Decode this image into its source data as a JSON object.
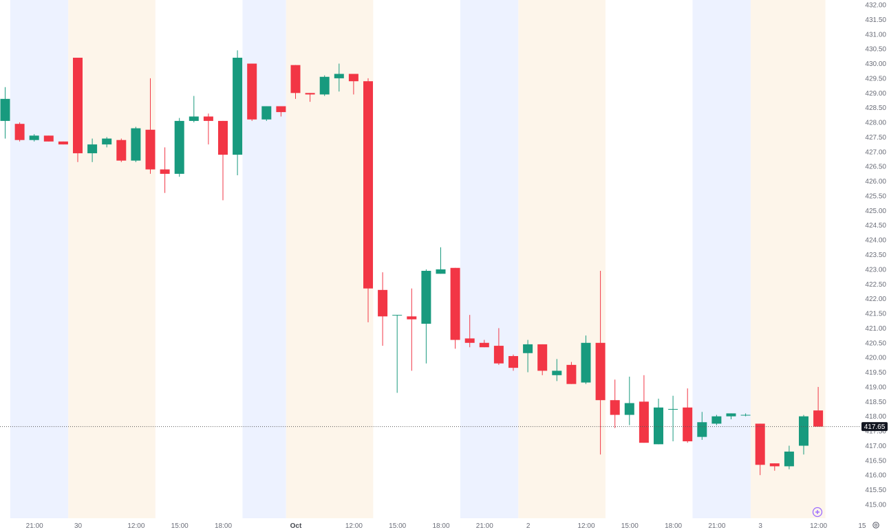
{
  "colors": {
    "up": "#189a7e",
    "down": "#f23645",
    "session_asia": "#edf2ff",
    "session_europe": "#fdf5ea",
    "axis_text": "#6a6d78",
    "price_line": "#555555",
    "price_tag_bg": "#131722",
    "accent": "#9c6cff"
  },
  "chart_data": {
    "type": "candlestick",
    "ylim": [
      414.8,
      432.0
    ],
    "y_ticks": [
      415.0,
      415.5,
      416.0,
      416.5,
      417.0,
      417.5,
      418.0,
      418.5,
      419.0,
      419.5,
      420.0,
      420.5,
      421.0,
      421.5,
      422.0,
      422.5,
      423.0,
      423.5,
      424.0,
      424.5,
      425.0,
      425.5,
      426.0,
      426.5,
      427.0,
      427.5,
      428.0,
      428.5,
      429.0,
      429.5,
      430.0,
      430.5,
      431.0,
      431.5,
      432.0
    ],
    "x_labels": [
      {
        "label": "21:00",
        "bar": 2
      },
      {
        "label": "30",
        "bar": 5
      },
      {
        "label": "12:00",
        "bar": 9
      },
      {
        "label": "15:00",
        "bar": 12
      },
      {
        "label": "18:00",
        "bar": 15
      },
      {
        "label": "Oct",
        "bar": 20,
        "bold": true
      },
      {
        "label": "12:00",
        "bar": 24
      },
      {
        "label": "15:00",
        "bar": 27
      },
      {
        "label": "18:00",
        "bar": 30
      },
      {
        "label": "21:00",
        "bar": 33
      },
      {
        "label": "2",
        "bar": 36
      },
      {
        "label": "12:00",
        "bar": 40
      },
      {
        "label": "15:00",
        "bar": 43
      },
      {
        "label": "18:00",
        "bar": 46
      },
      {
        "label": "21:00",
        "bar": 49
      },
      {
        "label": "3",
        "bar": 52
      },
      {
        "label": "12:00",
        "bar": 56
      },
      {
        "label": "15",
        "bar": 59
      }
    ],
    "sessions": [
      {
        "kind": "asia",
        "from": 0.35,
        "to": 4.35
      },
      {
        "kind": "europe",
        "from": 4.35,
        "to": 10.35
      },
      {
        "kind": "asia",
        "from": 16.35,
        "to": 19.35
      },
      {
        "kind": "europe",
        "from": 19.35,
        "to": 25.35
      },
      {
        "kind": "asia",
        "from": 31.35,
        "to": 35.35
      },
      {
        "kind": "europe",
        "from": 35.35,
        "to": 41.35
      },
      {
        "kind": "asia",
        "from": 47.35,
        "to": 51.35
      },
      {
        "kind": "europe",
        "from": 51.35,
        "to": 56.5
      }
    ],
    "last_price": 417.65,
    "last_price_label": "417.65",
    "candles": [
      {
        "o": 428.05,
        "h": 429.2,
        "l": 427.45,
        "c": 428.8
      },
      {
        "o": 427.95,
        "h": 428.0,
        "l": 427.35,
        "c": 427.4
      },
      {
        "o": 427.4,
        "h": 427.6,
        "l": 427.35,
        "c": 427.55
      },
      {
        "o": 427.55,
        "h": 427.55,
        "l": 427.35,
        "c": 427.35
      },
      {
        "o": 427.35,
        "h": 427.35,
        "l": 427.25,
        "c": 427.25
      },
      {
        "o": 430.2,
        "h": 430.2,
        "l": 426.65,
        "c": 426.95
      },
      {
        "o": 426.95,
        "h": 427.45,
        "l": 426.65,
        "c": 427.25
      },
      {
        "o": 427.25,
        "h": 427.5,
        "l": 427.15,
        "c": 427.45
      },
      {
        "o": 427.4,
        "h": 427.45,
        "l": 426.65,
        "c": 426.7
      },
      {
        "o": 426.7,
        "h": 427.85,
        "l": 426.65,
        "c": 427.8
      },
      {
        "o": 427.75,
        "h": 429.5,
        "l": 426.25,
        "c": 426.4
      },
      {
        "o": 426.4,
        "h": 427.15,
        "l": 425.6,
        "c": 426.25
      },
      {
        "o": 426.25,
        "h": 428.15,
        "l": 426.15,
        "c": 428.05
      },
      {
        "o": 428.05,
        "h": 428.9,
        "l": 428.0,
        "c": 428.2
      },
      {
        "o": 428.2,
        "h": 428.3,
        "l": 427.25,
        "c": 428.05
      },
      {
        "o": 428.05,
        "h": 428.05,
        "l": 425.35,
        "c": 426.9
      },
      {
        "o": 426.9,
        "h": 430.45,
        "l": 426.2,
        "c": 430.2
      },
      {
        "o": 430.0,
        "h": 430.0,
        "l": 428.05,
        "c": 428.1
      },
      {
        "o": 428.1,
        "h": 428.55,
        "l": 428.05,
        "c": 428.55
      },
      {
        "o": 428.55,
        "h": 428.55,
        "l": 428.2,
        "c": 428.35
      },
      {
        "o": 429.95,
        "h": 429.95,
        "l": 428.8,
        "c": 429.0
      },
      {
        "o": 429.0,
        "h": 429.0,
        "l": 428.7,
        "c": 428.95
      },
      {
        "o": 428.95,
        "h": 429.6,
        "l": 428.9,
        "c": 429.55
      },
      {
        "o": 429.5,
        "h": 430.0,
        "l": 429.05,
        "c": 429.65
      },
      {
        "o": 429.65,
        "h": 429.65,
        "l": 428.95,
        "c": 429.4
      },
      {
        "o": 429.4,
        "h": 429.5,
        "l": 421.2,
        "c": 422.35
      },
      {
        "o": 422.3,
        "h": 422.9,
        "l": 420.4,
        "c": 421.4
      },
      {
        "o": 421.45,
        "h": 421.45,
        "l": 418.8,
        "c": 421.45
      },
      {
        "o": 421.4,
        "h": 422.35,
        "l": 419.55,
        "c": 421.3
      },
      {
        "o": 421.15,
        "h": 423.0,
        "l": 419.8,
        "c": 422.95
      },
      {
        "o": 422.85,
        "h": 423.75,
        "l": 422.85,
        "c": 423.0
      },
      {
        "o": 423.05,
        "h": 423.05,
        "l": 420.3,
        "c": 420.6
      },
      {
        "o": 420.65,
        "h": 421.45,
        "l": 420.35,
        "c": 420.5
      },
      {
        "o": 420.5,
        "h": 420.6,
        "l": 420.35,
        "c": 420.35
      },
      {
        "o": 420.4,
        "h": 421.0,
        "l": 419.75,
        "c": 419.8
      },
      {
        "o": 420.05,
        "h": 420.1,
        "l": 419.55,
        "c": 419.65
      },
      {
        "o": 420.15,
        "h": 420.6,
        "l": 419.5,
        "c": 420.45
      },
      {
        "o": 420.45,
        "h": 420.45,
        "l": 419.4,
        "c": 419.55
      },
      {
        "o": 419.4,
        "h": 419.95,
        "l": 419.2,
        "c": 419.55
      },
      {
        "o": 419.75,
        "h": 419.85,
        "l": 419.1,
        "c": 419.1
      },
      {
        "o": 419.15,
        "h": 420.75,
        "l": 419.1,
        "c": 420.5
      },
      {
        "o": 420.5,
        "h": 422.95,
        "l": 416.7,
        "c": 418.55
      },
      {
        "o": 418.55,
        "h": 419.25,
        "l": 417.6,
        "c": 418.05
      },
      {
        "o": 418.05,
        "h": 419.35,
        "l": 417.7,
        "c": 418.45
      },
      {
        "o": 418.5,
        "h": 419.4,
        "l": 417.1,
        "c": 417.1
      },
      {
        "o": 417.05,
        "h": 418.6,
        "l": 417.05,
        "c": 418.3
      },
      {
        "o": 418.25,
        "h": 418.7,
        "l": 417.15,
        "c": 418.25
      },
      {
        "o": 418.3,
        "h": 418.95,
        "l": 417.1,
        "c": 417.15
      },
      {
        "o": 417.3,
        "h": 418.15,
        "l": 417.2,
        "c": 417.8
      },
      {
        "o": 417.75,
        "h": 418.05,
        "l": 417.7,
        "c": 418.0
      },
      {
        "o": 418.0,
        "h": 418.1,
        "l": 417.9,
        "c": 418.1
      },
      {
        "o": 418.05,
        "h": 418.1,
        "l": 418.0,
        "c": 418.05
      },
      {
        "o": 417.75,
        "h": 417.75,
        "l": 416.0,
        "c": 416.35
      },
      {
        "o": 416.4,
        "h": 416.4,
        "l": 416.15,
        "c": 416.3
      },
      {
        "o": 416.3,
        "h": 417.0,
        "l": 416.2,
        "c": 416.8
      },
      {
        "o": 417.0,
        "h": 418.05,
        "l": 416.7,
        "c": 418.0
      },
      {
        "o": 418.2,
        "h": 419.0,
        "l": 417.65,
        "c": 417.65
      }
    ]
  },
  "icons": {
    "add": "plus-circle-icon",
    "settings": "gear-icon"
  }
}
